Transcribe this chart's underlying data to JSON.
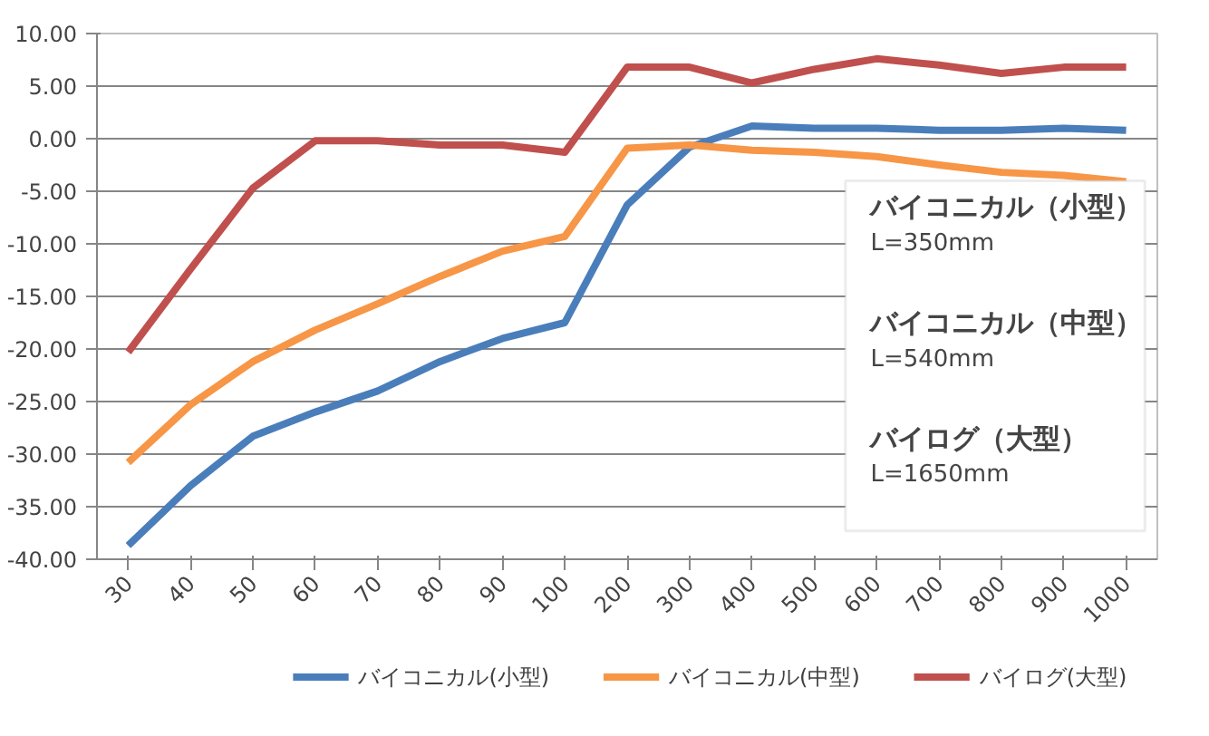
{
  "chart_data": {
    "type": "line",
    "categories": [
      "30",
      "40",
      "50",
      "60",
      "70",
      "80",
      "90",
      "100",
      "200",
      "300",
      "400",
      "500",
      "600",
      "700",
      "800",
      "900",
      "1000"
    ],
    "series": [
      {
        "name": "バイコニカル(小型)",
        "color": "#4a7ebb",
        "values": [
          -38.7,
          -33.0,
          -28.3,
          -26.0,
          -24.0,
          -21.2,
          -19.0,
          -17.5,
          -6.3,
          -0.8,
          1.2,
          1.0,
          1.0,
          0.8,
          0.8,
          1.0,
          0.8
        ]
      },
      {
        "name": "バイコニカル(中型)",
        "color": "#f79646",
        "values": [
          -30.8,
          -25.3,
          -21.2,
          -18.2,
          -15.7,
          -13.1,
          -10.7,
          -9.3,
          -0.9,
          -0.6,
          -1.1,
          -1.3,
          -1.7,
          -2.5,
          -3.2,
          -3.5,
          -4.1
        ]
      },
      {
        "name": "バイログ(大型)",
        "color": "#c0504d",
        "values": [
          -20.3,
          -12.4,
          -4.7,
          -0.2,
          -0.2,
          -0.6,
          -0.6,
          -1.3,
          6.8,
          6.8,
          5.3,
          6.6,
          7.6,
          7.0,
          6.2,
          6.8,
          6.8
        ]
      }
    ],
    "ylim": [
      -40,
      10
    ],
    "yticks": [
      {
        "value": -40,
        "label": "-40.00"
      },
      {
        "value": -35,
        "label": "-35.00"
      },
      {
        "value": -30,
        "label": "-30.00"
      },
      {
        "value": -25,
        "label": "-25.00"
      },
      {
        "value": -20,
        "label": "-20.00"
      },
      {
        "value": -15,
        "label": "-15.00"
      },
      {
        "value": -10,
        "label": "-10.00"
      },
      {
        "value": -5,
        "label": "-5.00"
      },
      {
        "value": 0,
        "label": "0.00"
      },
      {
        "value": 5,
        "label": "5.00"
      },
      {
        "value": 10,
        "label": "10.00"
      }
    ],
    "grid": "y",
    "legend": "bottom",
    "marker": "none",
    "line_style": "solid",
    "annotations": [
      "バイコニカル（小型）",
      "L=350mm",
      "バイコニカル（中型）",
      "L=540mm",
      "バイログ（大型）",
      "L=1650mm"
    ]
  }
}
